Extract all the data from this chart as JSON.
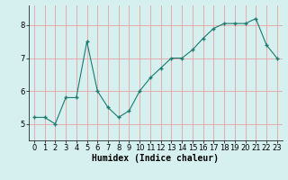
{
  "x": [
    0,
    1,
    2,
    3,
    4,
    5,
    6,
    7,
    8,
    9,
    10,
    11,
    12,
    13,
    14,
    15,
    16,
    17,
    18,
    19,
    20,
    21,
    22,
    23
  ],
  "y": [
    5.2,
    5.2,
    5.0,
    5.8,
    5.8,
    7.5,
    6.0,
    5.5,
    5.2,
    5.4,
    6.0,
    6.4,
    6.7,
    7.0,
    7.0,
    7.25,
    7.6,
    7.9,
    8.05,
    8.05,
    8.05,
    8.2,
    7.4,
    7.0
  ],
  "line_color": "#1a7a6e",
  "marker": "+",
  "marker_size": 3,
  "marker_linewidth": 1.0,
  "xlabel": "Humidex (Indice chaleur)",
  "ylim": [
    4.5,
    8.6
  ],
  "xlim": [
    -0.5,
    23.5
  ],
  "yticks": [
    5,
    6,
    7,
    8
  ],
  "xticks": [
    0,
    1,
    2,
    3,
    4,
    5,
    6,
    7,
    8,
    9,
    10,
    11,
    12,
    13,
    14,
    15,
    16,
    17,
    18,
    19,
    20,
    21,
    22,
    23
  ],
  "bg_color": "#d6f0f0",
  "grid_color": "#e8a0a0",
  "grid_alpha": 1.0,
  "grid_linewidth": 0.6,
  "font_size": 6,
  "xlabel_fontsize": 7,
  "line_width": 0.8
}
